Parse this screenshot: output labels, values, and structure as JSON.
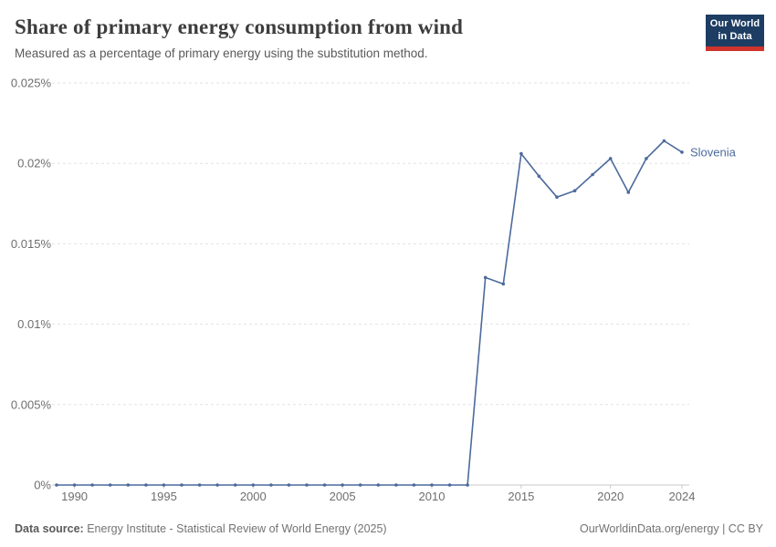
{
  "header": {
    "title": "Share of primary energy consumption from wind",
    "subtitle": "Measured as a percentage of primary energy using the substitution method.",
    "logo": {
      "line1": "Our World",
      "line2": "in Data"
    }
  },
  "chart_data": {
    "type": "line",
    "title": "Share of primary energy consumption from wind",
    "subtitle": "Measured as a percentage of primary energy using the substitution method.",
    "xlabel": "",
    "ylabel": "",
    "unit": "%",
    "xlim": [
      1989,
      2024
    ],
    "ylim": [
      0,
      0.025
    ],
    "grid": true,
    "legend_position": "end-of-line-label",
    "yticks": [
      {
        "value": 0,
        "label": "0%"
      },
      {
        "value": 0.005,
        "label": "0.005%"
      },
      {
        "value": 0.01,
        "label": "0.01%"
      },
      {
        "value": 0.015,
        "label": "0.015%"
      },
      {
        "value": 0.02,
        "label": "0.02%"
      },
      {
        "value": 0.025,
        "label": "0.025%"
      }
    ],
    "xticks": [
      {
        "value": 1990,
        "label": "1990"
      },
      {
        "value": 1995,
        "label": "1995"
      },
      {
        "value": 2000,
        "label": "2000"
      },
      {
        "value": 2005,
        "label": "2005"
      },
      {
        "value": 2010,
        "label": "2010"
      },
      {
        "value": 2015,
        "label": "2015"
      },
      {
        "value": 2020,
        "label": "2020"
      },
      {
        "value": 2024,
        "label": "2024"
      }
    ],
    "series": [
      {
        "name": "Slovenia",
        "x": [
          1989,
          1990,
          1991,
          1992,
          1993,
          1994,
          1995,
          1996,
          1997,
          1998,
          1999,
          2000,
          2001,
          2002,
          2003,
          2004,
          2005,
          2006,
          2007,
          2008,
          2009,
          2010,
          2011,
          2012,
          2013,
          2014,
          2015,
          2016,
          2017,
          2018,
          2019,
          2020,
          2021,
          2022,
          2023,
          2024
        ],
        "values": [
          0,
          0,
          0,
          0,
          0,
          0,
          0,
          0,
          0,
          0,
          0,
          0,
          0,
          0,
          0,
          0,
          0,
          0,
          0,
          0,
          0,
          0,
          0,
          0,
          0.0129,
          0.0125,
          0.0206,
          0.0192,
          0.0179,
          0.0183,
          0.0193,
          0.0203,
          0.0182,
          0.0203,
          0.0214,
          0.0207
        ]
      }
    ]
  },
  "colors": {
    "line": "#4C6A9C",
    "entity_label": "#4C6A9C",
    "grid": "#e2e2e2",
    "axis": "#c9c9c9",
    "tick_label": "#6e6e6e",
    "logo_navy": "#1d3d63",
    "logo_red": "#d0342c"
  },
  "footer": {
    "source_label": "Data source:",
    "source_text": " Energy Institute - Statistical Review of World Energy (2025)",
    "right_text": "OurWorldinData.org/energy | CC BY"
  }
}
